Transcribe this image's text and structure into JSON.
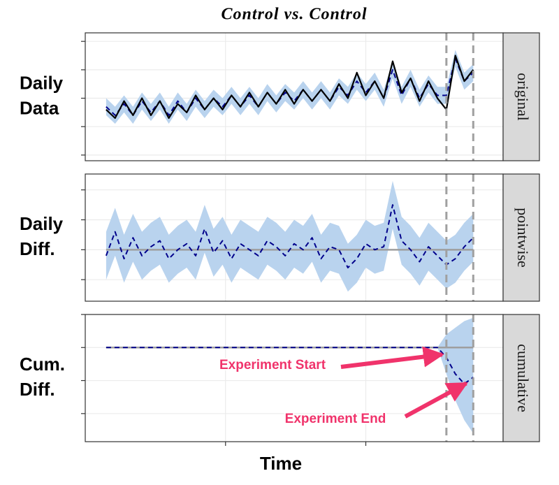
{
  "title": "Control vs. Control",
  "x_label": "Time",
  "chart_data": [
    {
      "type": "line",
      "ylabel": [
        "Daily",
        "Data"
      ],
      "strip": "original",
      "x": [
        0,
        3,
        6,
        9,
        12,
        15,
        18,
        21,
        24,
        27,
        30,
        33,
        36,
        39,
        42,
        45,
        48,
        51,
        54,
        57,
        60,
        63,
        66,
        69,
        72,
        75,
        78,
        81,
        84,
        87,
        90,
        93,
        96,
        99,
        102,
        105,
        108,
        111,
        114,
        117,
        120,
        123
      ],
      "xlim": [
        -7,
        133
      ],
      "xticks": [
        40,
        87
      ],
      "vlines": [
        114,
        123
      ],
      "ylim": [
        -0.2,
        4.3
      ],
      "yticks": [
        0,
        1,
        2,
        3,
        4
      ],
      "grid": true,
      "bands": [
        {
          "color": "#b9d3ee",
          "lower": [
            1.4,
            1.1,
            1.5,
            1.1,
            1.6,
            1.2,
            1.6,
            1.1,
            1.6,
            1.2,
            1.7,
            1.3,
            1.7,
            1.4,
            1.8,
            1.4,
            1.8,
            1.4,
            1.9,
            1.5,
            1.9,
            1.6,
            2.0,
            1.6,
            2.0,
            1.6,
            2.1,
            1.8,
            2.3,
            1.9,
            2.3,
            1.7,
            2.7,
            1.8,
            2.4,
            1.7,
            2.2,
            1.8,
            1.8,
            3.1,
            2.3,
            2.6
          ],
          "upper": [
            2.0,
            1.7,
            2.1,
            1.7,
            2.2,
            1.8,
            2.2,
            1.7,
            2.2,
            1.8,
            2.3,
            1.9,
            2.3,
            2.0,
            2.4,
            2.0,
            2.4,
            2.0,
            2.5,
            2.1,
            2.5,
            2.2,
            2.6,
            2.2,
            2.6,
            2.2,
            2.7,
            2.4,
            2.9,
            2.5,
            2.9,
            2.3,
            3.3,
            2.4,
            3.0,
            2.3,
            2.8,
            2.4,
            2.4,
            3.7,
            2.9,
            3.2
          ]
        }
      ],
      "lines": [
        {
          "color": "#00008b",
          "dash": true,
          "values": [
            1.7,
            1.4,
            1.8,
            1.4,
            1.9,
            1.5,
            1.9,
            1.4,
            1.9,
            1.5,
            2.0,
            1.6,
            2.0,
            1.7,
            2.1,
            1.7,
            2.1,
            1.7,
            2.2,
            1.8,
            2.2,
            1.9,
            2.3,
            1.9,
            2.3,
            1.9,
            2.4,
            2.1,
            2.6,
            2.2,
            2.6,
            2.0,
            3.0,
            2.1,
            2.7,
            2.0,
            2.5,
            2.1,
            2.1,
            3.4,
            2.6,
            2.9
          ]
        },
        {
          "color": "#000000",
          "dash": false,
          "values": [
            1.6,
            1.3,
            1.9,
            1.4,
            2.0,
            1.4,
            1.9,
            1.3,
            1.8,
            1.5,
            2.1,
            1.6,
            2.0,
            1.6,
            2.1,
            1.7,
            2.2,
            1.7,
            2.2,
            1.8,
            2.3,
            1.8,
            2.3,
            1.9,
            2.3,
            1.9,
            2.5,
            2.0,
            2.9,
            2.1,
            2.6,
            2.0,
            3.3,
            2.2,
            2.7,
            1.9,
            2.6,
            2.0,
            1.6,
            3.5,
            2.6,
            3.0
          ]
        }
      ]
    },
    {
      "type": "line",
      "ylabel": [
        "Daily",
        "Diff."
      ],
      "strip": "pointwise",
      "x": [
        0,
        3,
        6,
        9,
        12,
        15,
        18,
        21,
        24,
        27,
        30,
        33,
        36,
        39,
        42,
        45,
        48,
        51,
        54,
        57,
        60,
        63,
        66,
        69,
        72,
        75,
        78,
        81,
        84,
        87,
        90,
        93,
        96,
        99,
        102,
        105,
        108,
        111,
        114,
        117,
        120,
        123
      ],
      "xlim": [
        -7,
        133
      ],
      "xticks": [
        40,
        87
      ],
      "vlines": [
        114,
        123
      ],
      "ylim": [
        -1.72,
        2.53
      ],
      "yticks": [
        -1,
        0,
        1,
        2
      ],
      "grid": true,
      "hline": 0,
      "bands": [
        {
          "color": "#b9d3ee",
          "lower": [
            -1.0,
            -0.2,
            -1.1,
            -0.4,
            -1.0,
            -0.7,
            -0.5,
            -1.1,
            -0.8,
            -0.6,
            -1.0,
            -0.1,
            -0.9,
            -0.5,
            -1.1,
            -0.6,
            -0.8,
            -1.0,
            -0.5,
            -0.7,
            -1.0,
            -0.6,
            -0.8,
            -0.4,
            -1.1,
            -0.7,
            -0.8,
            -1.4,
            -1.1,
            -0.6,
            -0.8,
            -0.7,
            0.7,
            -0.5,
            -0.8,
            -1.2,
            -0.7,
            -1.0,
            -1.3,
            -1.1,
            -0.7,
            -0.4
          ],
          "upper": [
            0.6,
            1.4,
            0.5,
            1.2,
            0.6,
            0.9,
            1.1,
            0.5,
            0.8,
            1.0,
            0.6,
            1.5,
            0.7,
            1.1,
            0.5,
            1.0,
            0.8,
            0.6,
            1.1,
            0.9,
            0.6,
            1.0,
            0.8,
            1.2,
            0.5,
            0.9,
            0.8,
            0.2,
            0.5,
            1.0,
            0.8,
            0.9,
            2.3,
            1.1,
            0.8,
            0.4,
            0.9,
            0.6,
            0.3,
            0.5,
            0.9,
            1.2
          ]
        }
      ],
      "lines": [
        {
          "color": "#00008b",
          "dash": true,
          "values": [
            -0.2,
            0.6,
            -0.3,
            0.4,
            -0.2,
            0.1,
            0.3,
            -0.3,
            0,
            0.2,
            -0.2,
            0.7,
            -0.1,
            0.3,
            -0.3,
            0.2,
            0,
            -0.2,
            0.3,
            0.1,
            -0.2,
            0.2,
            0,
            0.4,
            -0.3,
            0.1,
            0,
            -0.6,
            -0.3,
            0.2,
            0,
            0.1,
            1.5,
            0.3,
            0,
            -0.4,
            0.1,
            -0.2,
            -0.5,
            -0.3,
            0.1,
            0.4
          ]
        }
      ]
    },
    {
      "type": "line",
      "ylabel": [
        "Cum.",
        "Diff."
      ],
      "strip": "cumulative",
      "x": [
        0,
        3,
        6,
        9,
        12,
        15,
        18,
        21,
        24,
        27,
        30,
        33,
        36,
        39,
        42,
        45,
        48,
        51,
        54,
        57,
        60,
        63,
        66,
        69,
        72,
        75,
        78,
        81,
        84,
        87,
        90,
        93,
        96,
        99,
        102,
        105,
        108,
        111,
        114,
        117,
        120,
        123
      ],
      "xlim": [
        -7,
        133
      ],
      "xticks": [
        40,
        87
      ],
      "vlines": [
        114,
        123
      ],
      "ylim": [
        -2.85,
        1
      ],
      "yticks": [
        -2,
        -1,
        0,
        1
      ],
      "grid": true,
      "hline": 0,
      "bands": [
        {
          "color": "#b9d3ee",
          "lower": [
            null,
            null,
            null,
            null,
            null,
            null,
            null,
            null,
            null,
            null,
            null,
            null,
            null,
            null,
            null,
            null,
            null,
            null,
            null,
            null,
            null,
            null,
            null,
            null,
            null,
            null,
            null,
            null,
            null,
            null,
            null,
            null,
            null,
            null,
            null,
            null,
            null,
            0,
            -0.8,
            -1.6,
            -2.2,
            -2.6
          ],
          "upper": [
            null,
            null,
            null,
            null,
            null,
            null,
            null,
            null,
            null,
            null,
            null,
            null,
            null,
            null,
            null,
            null,
            null,
            null,
            null,
            null,
            null,
            null,
            null,
            null,
            null,
            null,
            null,
            null,
            null,
            null,
            null,
            null,
            null,
            null,
            null,
            null,
            null,
            0,
            0.4,
            0.6,
            0.8,
            0.9
          ]
        }
      ],
      "lines": [
        {
          "color": "#00008b",
          "dash": true,
          "values": [
            0,
            0,
            0,
            0,
            0,
            0,
            0,
            0,
            0,
            0,
            0,
            0,
            0,
            0,
            0,
            0,
            0,
            0,
            0,
            0,
            0,
            0,
            0,
            0,
            0,
            0,
            0,
            0,
            0,
            0,
            0,
            0,
            0,
            0,
            0,
            0,
            0,
            0,
            -0.3,
            -0.8,
            -1.1,
            -0.9
          ]
        }
      ],
      "annotations": [
        "Experiment Start",
        "Experiment End"
      ]
    }
  ]
}
